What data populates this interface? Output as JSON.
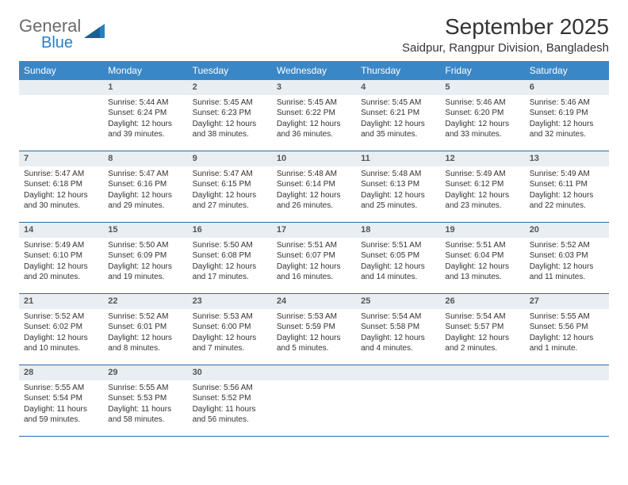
{
  "logo": {
    "word1": "General",
    "word2": "Blue"
  },
  "title": "September 2025",
  "location": "Saidpur, Rangpur Division, Bangladesh",
  "colors": {
    "header_bg": "#3a87c7",
    "header_text": "#ffffff",
    "daynum_bg": "#e8eef2",
    "border": "#2b6ca3",
    "text": "#333333",
    "logo_gray": "#6b6b6b",
    "logo_blue": "#2b7fbf"
  },
  "day_headers": [
    "Sunday",
    "Monday",
    "Tuesday",
    "Wednesday",
    "Thursday",
    "Friday",
    "Saturday"
  ],
  "weeks": [
    [
      {
        "n": "",
        "lines": []
      },
      {
        "n": "1",
        "lines": [
          "Sunrise: 5:44 AM",
          "Sunset: 6:24 PM",
          "Daylight: 12 hours",
          "and 39 minutes."
        ]
      },
      {
        "n": "2",
        "lines": [
          "Sunrise: 5:45 AM",
          "Sunset: 6:23 PM",
          "Daylight: 12 hours",
          "and 38 minutes."
        ]
      },
      {
        "n": "3",
        "lines": [
          "Sunrise: 5:45 AM",
          "Sunset: 6:22 PM",
          "Daylight: 12 hours",
          "and 36 minutes."
        ]
      },
      {
        "n": "4",
        "lines": [
          "Sunrise: 5:45 AM",
          "Sunset: 6:21 PM",
          "Daylight: 12 hours",
          "and 35 minutes."
        ]
      },
      {
        "n": "5",
        "lines": [
          "Sunrise: 5:46 AM",
          "Sunset: 6:20 PM",
          "Daylight: 12 hours",
          "and 33 minutes."
        ]
      },
      {
        "n": "6",
        "lines": [
          "Sunrise: 5:46 AM",
          "Sunset: 6:19 PM",
          "Daylight: 12 hours",
          "and 32 minutes."
        ]
      }
    ],
    [
      {
        "n": "7",
        "lines": [
          "Sunrise: 5:47 AM",
          "Sunset: 6:18 PM",
          "Daylight: 12 hours",
          "and 30 minutes."
        ]
      },
      {
        "n": "8",
        "lines": [
          "Sunrise: 5:47 AM",
          "Sunset: 6:16 PM",
          "Daylight: 12 hours",
          "and 29 minutes."
        ]
      },
      {
        "n": "9",
        "lines": [
          "Sunrise: 5:47 AM",
          "Sunset: 6:15 PM",
          "Daylight: 12 hours",
          "and 27 minutes."
        ]
      },
      {
        "n": "10",
        "lines": [
          "Sunrise: 5:48 AM",
          "Sunset: 6:14 PM",
          "Daylight: 12 hours",
          "and 26 minutes."
        ]
      },
      {
        "n": "11",
        "lines": [
          "Sunrise: 5:48 AM",
          "Sunset: 6:13 PM",
          "Daylight: 12 hours",
          "and 25 minutes."
        ]
      },
      {
        "n": "12",
        "lines": [
          "Sunrise: 5:49 AM",
          "Sunset: 6:12 PM",
          "Daylight: 12 hours",
          "and 23 minutes."
        ]
      },
      {
        "n": "13",
        "lines": [
          "Sunrise: 5:49 AM",
          "Sunset: 6:11 PM",
          "Daylight: 12 hours",
          "and 22 minutes."
        ]
      }
    ],
    [
      {
        "n": "14",
        "lines": [
          "Sunrise: 5:49 AM",
          "Sunset: 6:10 PM",
          "Daylight: 12 hours",
          "and 20 minutes."
        ]
      },
      {
        "n": "15",
        "lines": [
          "Sunrise: 5:50 AM",
          "Sunset: 6:09 PM",
          "Daylight: 12 hours",
          "and 19 minutes."
        ]
      },
      {
        "n": "16",
        "lines": [
          "Sunrise: 5:50 AM",
          "Sunset: 6:08 PM",
          "Daylight: 12 hours",
          "and 17 minutes."
        ]
      },
      {
        "n": "17",
        "lines": [
          "Sunrise: 5:51 AM",
          "Sunset: 6:07 PM",
          "Daylight: 12 hours",
          "and 16 minutes."
        ]
      },
      {
        "n": "18",
        "lines": [
          "Sunrise: 5:51 AM",
          "Sunset: 6:05 PM",
          "Daylight: 12 hours",
          "and 14 minutes."
        ]
      },
      {
        "n": "19",
        "lines": [
          "Sunrise: 5:51 AM",
          "Sunset: 6:04 PM",
          "Daylight: 12 hours",
          "and 13 minutes."
        ]
      },
      {
        "n": "20",
        "lines": [
          "Sunrise: 5:52 AM",
          "Sunset: 6:03 PM",
          "Daylight: 12 hours",
          "and 11 minutes."
        ]
      }
    ],
    [
      {
        "n": "21",
        "lines": [
          "Sunrise: 5:52 AM",
          "Sunset: 6:02 PM",
          "Daylight: 12 hours",
          "and 10 minutes."
        ]
      },
      {
        "n": "22",
        "lines": [
          "Sunrise: 5:52 AM",
          "Sunset: 6:01 PM",
          "Daylight: 12 hours",
          "and 8 minutes."
        ]
      },
      {
        "n": "23",
        "lines": [
          "Sunrise: 5:53 AM",
          "Sunset: 6:00 PM",
          "Daylight: 12 hours",
          "and 7 minutes."
        ]
      },
      {
        "n": "24",
        "lines": [
          "Sunrise: 5:53 AM",
          "Sunset: 5:59 PM",
          "Daylight: 12 hours",
          "and 5 minutes."
        ]
      },
      {
        "n": "25",
        "lines": [
          "Sunrise: 5:54 AM",
          "Sunset: 5:58 PM",
          "Daylight: 12 hours",
          "and 4 minutes."
        ]
      },
      {
        "n": "26",
        "lines": [
          "Sunrise: 5:54 AM",
          "Sunset: 5:57 PM",
          "Daylight: 12 hours",
          "and 2 minutes."
        ]
      },
      {
        "n": "27",
        "lines": [
          "Sunrise: 5:55 AM",
          "Sunset: 5:56 PM",
          "Daylight: 12 hours",
          "and 1 minute."
        ]
      }
    ],
    [
      {
        "n": "28",
        "lines": [
          "Sunrise: 5:55 AM",
          "Sunset: 5:54 PM",
          "Daylight: 11 hours",
          "and 59 minutes."
        ]
      },
      {
        "n": "29",
        "lines": [
          "Sunrise: 5:55 AM",
          "Sunset: 5:53 PM",
          "Daylight: 11 hours",
          "and 58 minutes."
        ]
      },
      {
        "n": "30",
        "lines": [
          "Sunrise: 5:56 AM",
          "Sunset: 5:52 PM",
          "Daylight: 11 hours",
          "and 56 minutes."
        ]
      },
      {
        "n": "",
        "lines": []
      },
      {
        "n": "",
        "lines": []
      },
      {
        "n": "",
        "lines": []
      },
      {
        "n": "",
        "lines": []
      }
    ]
  ]
}
